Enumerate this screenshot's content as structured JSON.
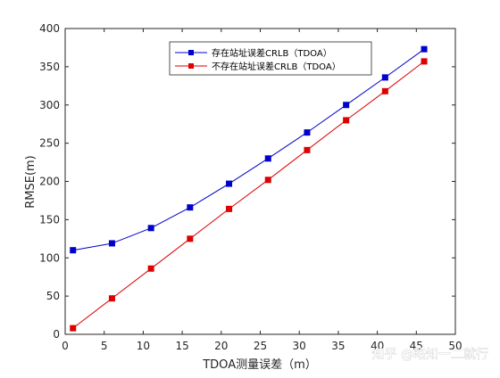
{
  "chart_data": {
    "type": "line",
    "title": "",
    "xlabel": "TDOA测量误差（m）",
    "ylabel": "RMSE(m)",
    "xlim": [
      0,
      50
    ],
    "ylim": [
      0,
      400
    ],
    "xticks": [
      0,
      5,
      10,
      15,
      20,
      25,
      30,
      35,
      40,
      45,
      50
    ],
    "yticks": [
      0,
      50,
      100,
      150,
      200,
      250,
      300,
      350,
      400
    ],
    "grid": false,
    "legend_position": "top-right",
    "marker": "square",
    "x": [
      1,
      6,
      11,
      16,
      21,
      26,
      31,
      36,
      41,
      46
    ],
    "series": [
      {
        "name": "存在站址误差CRLB（TDOA）",
        "color": "#0000cc",
        "values": [
          110,
          119,
          139,
          166,
          197,
          230,
          264,
          300,
          336,
          373
        ]
      },
      {
        "name": "不存在站址误差CRLB（TDOA）",
        "color": "#dd0000",
        "values": [
          8,
          47,
          86,
          125,
          164,
          202,
          241,
          280,
          318,
          357
        ]
      }
    ]
  },
  "watermark": "知乎 @略知一二就行"
}
